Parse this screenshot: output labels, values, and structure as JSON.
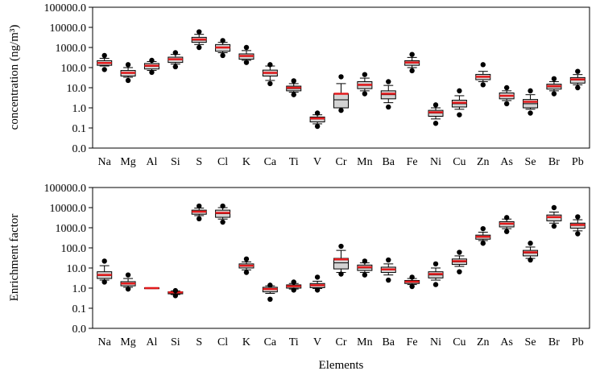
{
  "chart_data": [
    {
      "type": "box",
      "ylabel": "concentration (ng/m³)",
      "xlabel": "",
      "yscale": "log",
      "ylim": [
        0.01,
        100000
      ],
      "ytick_values": [
        0.01,
        0.1,
        1,
        10,
        100,
        1000,
        10000,
        100000
      ],
      "ytick_labels": [
        "0.0",
        "0.1",
        "1.0",
        "10.0",
        "100.0",
        "1000.0",
        "10000.0",
        "100000.0"
      ],
      "categories": [
        "Na",
        "Mg",
        "Al",
        "Si",
        "S",
        "Cl",
        "K",
        "Ca",
        "Ti",
        "V",
        "Cr",
        "Mn",
        "Ba",
        "Fe",
        "Ni",
        "Cu",
        "Zn",
        "As",
        "Se",
        "Br",
        "Pb"
      ],
      "boxes": [
        {
          "whislo": 120,
          "q1": 130,
          "med": 165,
          "mean": 170,
          "q3": 220,
          "whishi": 290,
          "fliers": [
            80,
            400
          ]
        },
        {
          "whislo": 33,
          "q1": 38,
          "med": 52,
          "mean": 55,
          "q3": 72,
          "whishi": 100,
          "fliers": [
            23,
            140
          ]
        },
        {
          "whislo": 72,
          "q1": 85,
          "med": 115,
          "mean": 125,
          "q3": 160,
          "whishi": 200,
          "fliers": [
            58,
            230
          ]
        },
        {
          "whislo": 150,
          "q1": 180,
          "med": 250,
          "mean": 260,
          "q3": 330,
          "whishi": 450,
          "fliers": [
            110,
            550
          ]
        },
        {
          "whislo": 1400,
          "q1": 1800,
          "med": 2300,
          "mean": 2500,
          "q3": 3200,
          "whishi": 4500,
          "fliers": [
            1000,
            6000
          ]
        },
        {
          "whislo": 550,
          "q1": 650,
          "med": 950,
          "mean": 1000,
          "q3": 1400,
          "whishi": 1800,
          "fliers": [
            400,
            2200
          ]
        },
        {
          "whislo": 230,
          "q1": 260,
          "med": 360,
          "mean": 380,
          "q3": 480,
          "whishi": 700,
          "fliers": [
            180,
            1000
          ]
        },
        {
          "whislo": 23,
          "q1": 38,
          "med": 52,
          "mean": 55,
          "q3": 75,
          "whishi": 120,
          "fliers": [
            16,
            140
          ]
        },
        {
          "whislo": 6,
          "q1": 7,
          "med": 9,
          "mean": 10,
          "q3": 12,
          "whishi": 16,
          "fliers": [
            4.5,
            22
          ]
        },
        {
          "whislo": 0.16,
          "q1": 0.2,
          "med": 0.28,
          "mean": 0.3,
          "q3": 0.35,
          "whishi": 0.45,
          "fliers": [
            0.12,
            0.55
          ]
        },
        {
          "whislo": 1.0,
          "q1": 1.0,
          "med": 2.5,
          "mean": 5,
          "q3": 5,
          "whishi": 16,
          "fliers": [
            0.75,
            35
          ]
        },
        {
          "whislo": 7,
          "q1": 9,
          "med": 13,
          "mean": 14,
          "q3": 20,
          "whishi": 30,
          "fliers": [
            5,
            45
          ]
        },
        {
          "whislo": 1.8,
          "q1": 2.8,
          "med": 4.5,
          "mean": 5,
          "q3": 7,
          "whishi": 13,
          "fliers": [
            1.1,
            20
          ]
        },
        {
          "whislo": 100,
          "q1": 130,
          "med": 170,
          "mean": 180,
          "q3": 220,
          "whishi": 320,
          "fliers": [
            70,
            450
          ]
        },
        {
          "whislo": 0.28,
          "q1": 0.38,
          "med": 0.55,
          "mean": 0.6,
          "q3": 0.75,
          "whishi": 1.0,
          "fliers": [
            0.17,
            1.4
          ]
        },
        {
          "whislo": 0.85,
          "q1": 1.1,
          "med": 1.6,
          "mean": 1.8,
          "q3": 2.4,
          "whishi": 4,
          "fliers": [
            0.45,
            7
          ]
        },
        {
          "whislo": 20,
          "q1": 25,
          "med": 33,
          "mean": 35,
          "q3": 46,
          "whishi": 65,
          "fliers": [
            14,
            140
          ]
        },
        {
          "whislo": 2.3,
          "q1": 2.8,
          "med": 3.8,
          "mean": 4,
          "q3": 5.5,
          "whishi": 7,
          "fliers": [
            1.6,
            10
          ]
        },
        {
          "whislo": 0.85,
          "q1": 1.0,
          "med": 1.6,
          "mean": 2,
          "q3": 2.6,
          "whishi": 4.5,
          "fliers": [
            0.55,
            7
          ]
        },
        {
          "whislo": 7,
          "q1": 8.5,
          "med": 11,
          "mean": 12,
          "q3": 15,
          "whishi": 20,
          "fliers": [
            5,
            28
          ]
        },
        {
          "whislo": 14,
          "q1": 17,
          "med": 24,
          "mean": 26,
          "q3": 32,
          "whishi": 45,
          "fliers": [
            10,
            65
          ]
        }
      ]
    },
    {
      "type": "box",
      "ylabel": "Enrichment factor",
      "xlabel": "Elements",
      "yscale": "log",
      "ylim": [
        0.01,
        100000
      ],
      "ytick_values": [
        0.01,
        0.1,
        1,
        10,
        100,
        1000,
        10000,
        100000
      ],
      "ytick_labels": [
        "0.0",
        "0.1",
        "1.0",
        "10.0",
        "100.0",
        "1000.0",
        "10000.0",
        "100000.0"
      ],
      "categories": [
        "Na",
        "Mg",
        "Al",
        "Si",
        "S",
        "Cl",
        "K",
        "Ca",
        "Ti",
        "V",
        "Cr",
        "Mn",
        "Ba",
        "Fe",
        "Ni",
        "Cu",
        "Zn",
        "As",
        "Se",
        "Br",
        "Pb"
      ],
      "boxes": [
        {
          "whislo": 2.5,
          "q1": 3.0,
          "med": 4.2,
          "mean": 4.5,
          "q3": 6.5,
          "whishi": 13,
          "fliers": [
            2,
            22
          ]
        },
        {
          "whislo": 1.1,
          "q1": 1.3,
          "med": 1.6,
          "mean": 1.7,
          "q3": 2.1,
          "whishi": 3,
          "fliers": [
            0.9,
            4.5
          ]
        },
        {
          "whislo": 0.95,
          "q1": 0.97,
          "med": 1.0,
          "mean": 1.0,
          "q3": 1.03,
          "whishi": 1.05,
          "fliers": []
        },
        {
          "whislo": 0.48,
          "q1": 0.52,
          "med": 0.6,
          "mean": 0.62,
          "q3": 0.66,
          "whishi": 0.72,
          "fliers": [
            0.42,
            0.75
          ]
        },
        {
          "whislo": 4000,
          "q1": 4700,
          "med": 6200,
          "mean": 6300,
          "q3": 7500,
          "whishi": 9500,
          "fliers": [
            2800,
            12000
          ]
        },
        {
          "whislo": 2700,
          "q1": 3300,
          "med": 5000,
          "mean": 5500,
          "q3": 7500,
          "whishi": 10000,
          "fliers": [
            1900,
            12000
          ]
        },
        {
          "whislo": 8,
          "q1": 10,
          "med": 12.5,
          "mean": 13,
          "q3": 16,
          "whishi": 20,
          "fliers": [
            6,
            28
          ]
        },
        {
          "whislo": 0.55,
          "q1": 0.65,
          "med": 0.85,
          "mean": 0.9,
          "q3": 1.1,
          "whishi": 1.3,
          "fliers": [
            0.28,
            1.4
          ]
        },
        {
          "whislo": 0.9,
          "q1": 1.0,
          "med": 1.2,
          "mean": 1.25,
          "q3": 1.45,
          "whishi": 1.7,
          "fliers": [
            0.8,
            2
          ]
        },
        {
          "whislo": 0.95,
          "q1": 1.05,
          "med": 1.3,
          "mean": 1.4,
          "q3": 1.7,
          "whishi": 2.2,
          "fliers": [
            0.8,
            3.5
          ]
        },
        {
          "whislo": 6,
          "q1": 9,
          "med": 18,
          "mean": 27,
          "q3": 30,
          "whishi": 75,
          "fliers": [
            5,
            120
          ]
        },
        {
          "whislo": 6,
          "q1": 7.5,
          "med": 10,
          "mean": 11,
          "q3": 14,
          "whishi": 18,
          "fliers": [
            4.5,
            22
          ]
        },
        {
          "whislo": 4.5,
          "q1": 6,
          "med": 8,
          "mean": 8.5,
          "q3": 11,
          "whishi": 16,
          "fliers": [
            2.5,
            25
          ]
        },
        {
          "whislo": 1.5,
          "q1": 1.7,
          "med": 2.0,
          "mean": 2.1,
          "q3": 2.4,
          "whishi": 3,
          "fliers": [
            1.2,
            3.5
          ]
        },
        {
          "whislo": 2.5,
          "q1": 3.2,
          "med": 4.5,
          "mean": 5,
          "q3": 6.5,
          "whishi": 10,
          "fliers": [
            1.5,
            16
          ]
        },
        {
          "whislo": 12,
          "q1": 15,
          "med": 20,
          "mean": 22,
          "q3": 28,
          "whishi": 40,
          "fliers": [
            6.5,
            60
          ]
        },
        {
          "whislo": 230,
          "q1": 270,
          "med": 340,
          "mean": 360,
          "q3": 430,
          "whishi": 600,
          "fliers": [
            170,
            900
          ]
        },
        {
          "whislo": 900,
          "q1": 1100,
          "med": 1500,
          "mean": 1600,
          "q3": 2000,
          "whishi": 2700,
          "fliers": [
            650,
            3200
          ]
        },
        {
          "whislo": 30,
          "q1": 40,
          "med": 55,
          "mean": 60,
          "q3": 75,
          "whishi": 110,
          "fliers": [
            25,
            170
          ]
        },
        {
          "whislo": 1700,
          "q1": 2200,
          "med": 3200,
          "mean": 3400,
          "q3": 4300,
          "whishi": 6000,
          "fliers": [
            1200,
            10000
          ]
        },
        {
          "whislo": 700,
          "q1": 950,
          "med": 1300,
          "mean": 1400,
          "q3": 1700,
          "whishi": 2500,
          "fliers": [
            500,
            3500
          ]
        }
      ]
    }
  ],
  "colors": {
    "box_fill": "#d3d3d3",
    "box_stroke": "#000000",
    "median_line": "#000000",
    "mean_line": "#e31a1c",
    "flier": "#000000"
  }
}
